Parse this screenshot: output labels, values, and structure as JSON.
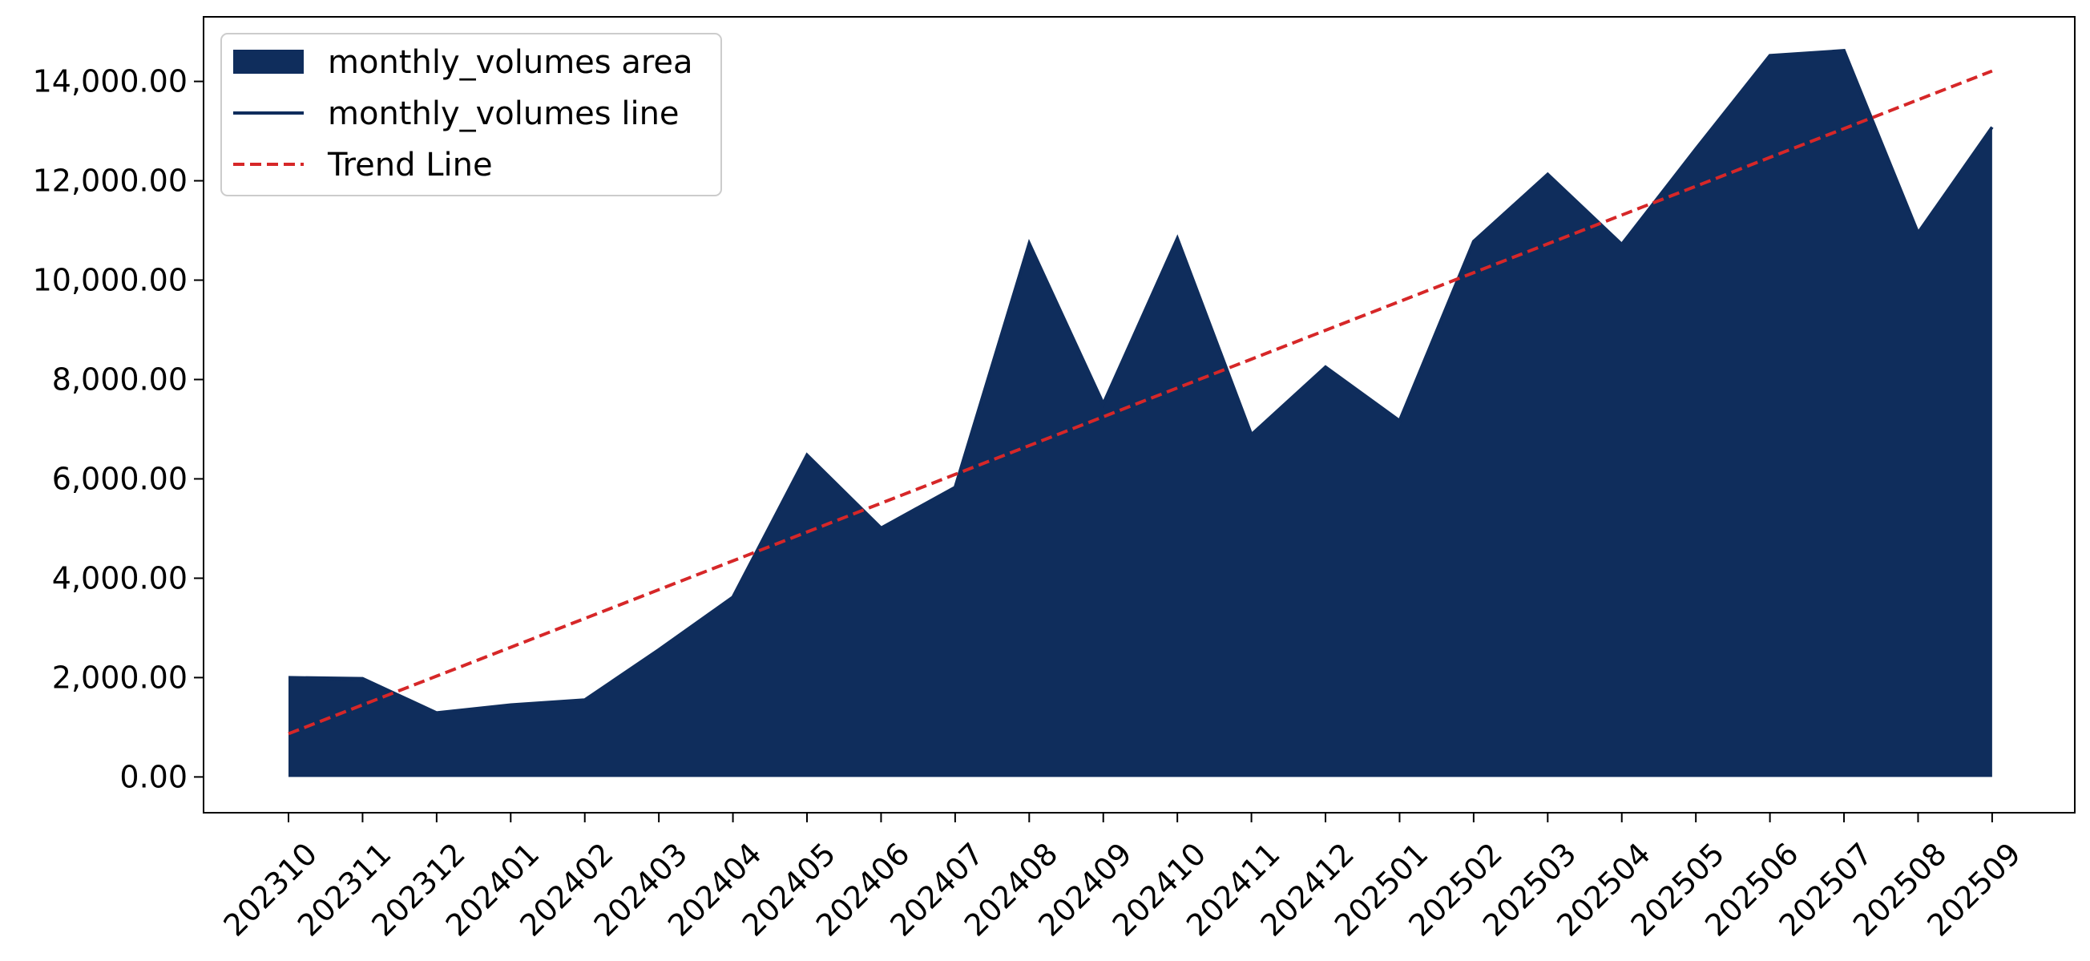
{
  "chart_data": {
    "type": "area",
    "categories": [
      "202310",
      "202311",
      "202312",
      "202401",
      "202402",
      "202403",
      "202404",
      "202405",
      "202406",
      "202407",
      "202408",
      "202409",
      "202410",
      "202411",
      "202412",
      "202501",
      "202502",
      "202503",
      "202504",
      "202505",
      "202506",
      "202507",
      "202508",
      "202509"
    ],
    "series": [
      {
        "name": "monthly_volumes area",
        "kind": "area",
        "color": "#0f2d5c",
        "values": [
          2000,
          1980,
          1290,
          1450,
          1550,
          2560,
          3620,
          6480,
          5010,
          5830,
          10740,
          7510,
          10840,
          6890,
          8250,
          7170,
          10780,
          12130,
          10720,
          12640,
          14520,
          14620,
          10950,
          13080
        ]
      },
      {
        "name": "monthly_volumes line",
        "kind": "line",
        "color": "#0f2d5c",
        "values": [
          2000,
          1980,
          1290,
          1450,
          1550,
          2560,
          3620,
          6480,
          5010,
          5830,
          10740,
          7510,
          10840,
          6890,
          8250,
          7170,
          10780,
          12130,
          10720,
          12640,
          14520,
          14620,
          10950,
          13080
        ]
      },
      {
        "name": "Trend Line",
        "kind": "trend",
        "color": "#d62728",
        "values": [
          870,
          1450,
          2030,
          2610,
          3190,
          3770,
          4350,
          4930,
          5510,
          6090,
          6670,
          7250,
          7830,
          8410,
          8990,
          9570,
          10150,
          10730,
          11310,
          11890,
          12470,
          13050,
          13630,
          14210
        ]
      }
    ],
    "yticks": [
      0,
      2000,
      4000,
      6000,
      8000,
      10000,
      12000,
      14000
    ],
    "ytick_labels": [
      "0.00",
      "2,000.00",
      "4,000.00",
      "6,000.00",
      "8,000.00",
      "10,000.00",
      "12,000.00",
      "14,000.00"
    ],
    "ylim": [
      -720,
      15300
    ],
    "title": "",
    "xlabel": "",
    "ylabel": "",
    "legend_position": "top-left",
    "grid": false
  }
}
